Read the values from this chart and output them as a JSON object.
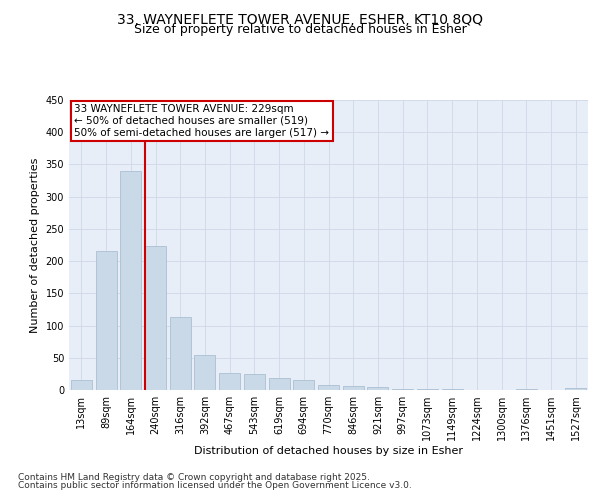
{
  "title_line1": "33, WAYNEFLETE TOWER AVENUE, ESHER, KT10 8QQ",
  "title_line2": "Size of property relative to detached houses in Esher",
  "xlabel": "Distribution of detached houses by size in Esher",
  "ylabel": "Number of detached properties",
  "bar_labels": [
    "13sqm",
    "89sqm",
    "164sqm",
    "240sqm",
    "316sqm",
    "392sqm",
    "467sqm",
    "543sqm",
    "619sqm",
    "694sqm",
    "770sqm",
    "846sqm",
    "921sqm",
    "997sqm",
    "1073sqm",
    "1149sqm",
    "1224sqm",
    "1300sqm",
    "1376sqm",
    "1451sqm",
    "1527sqm"
  ],
  "bar_values": [
    15,
    216,
    340,
    223,
    113,
    54,
    27,
    25,
    18,
    15,
    8,
    6,
    5,
    2,
    1,
    1,
    0,
    0,
    1,
    0,
    3
  ],
  "bar_color": "#c9d9e8",
  "bar_edge_color": "#a0b8cc",
  "vline_index": 3,
  "vline_color": "#cc0000",
  "annotation_text": "33 WAYNEFLETE TOWER AVENUE: 229sqm\n← 50% of detached houses are smaller (519)\n50% of semi-detached houses are larger (517) →",
  "annotation_box_color": "#cc0000",
  "annotation_text_color": "black",
  "annotation_bg_color": "white",
  "ylim": [
    0,
    450
  ],
  "yticks": [
    0,
    50,
    100,
    150,
    200,
    250,
    300,
    350,
    400,
    450
  ],
  "grid_color": "#d0d8e8",
  "background_color": "#e8eef8",
  "footer_line1": "Contains HM Land Registry data © Crown copyright and database right 2025.",
  "footer_line2": "Contains public sector information licensed under the Open Government Licence v3.0.",
  "title_fontsize": 10,
  "subtitle_fontsize": 9,
  "axis_label_fontsize": 8,
  "tick_fontsize": 7,
  "annotation_fontsize": 7.5,
  "footer_fontsize": 6.5
}
